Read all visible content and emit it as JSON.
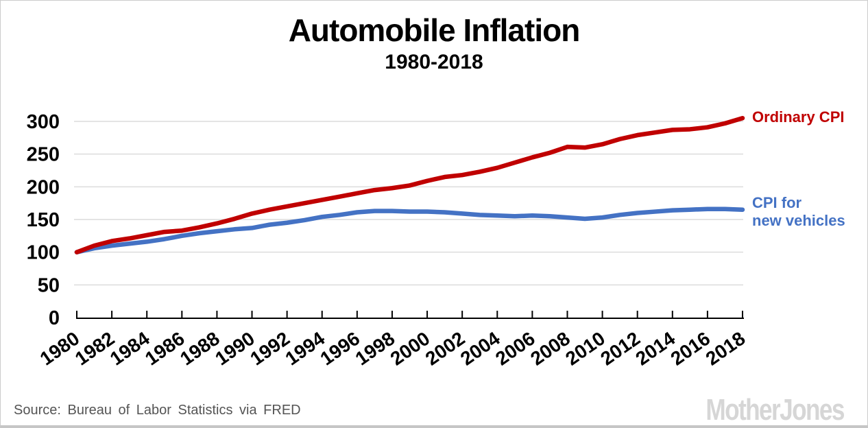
{
  "title": "Automobile Inflation",
  "subtitle": "1980-2018",
  "source": "Source: Bureau of Labor Statistics via FRED",
  "logo": "MotherJones",
  "legend": {
    "ordinary_cpi": "Ordinary CPI",
    "new_vehicles_line1": "CPI for",
    "new_vehicles_line2": "new vehicles"
  },
  "colors": {
    "ordinary_cpi": "#c00000",
    "new_vehicles": "#4472c4",
    "gridline": "#dcdcdc",
    "axis": "#000000"
  },
  "chart_data": {
    "type": "line",
    "title": "Automobile Inflation",
    "subtitle": "1980-2018",
    "xlabel": "",
    "ylabel": "",
    "x": [
      1980,
      1981,
      1982,
      1983,
      1984,
      1985,
      1986,
      1987,
      1988,
      1989,
      1990,
      1991,
      1992,
      1993,
      1994,
      1995,
      1996,
      1997,
      1998,
      1999,
      2000,
      2001,
      2002,
      2003,
      2004,
      2005,
      2006,
      2007,
      2008,
      2009,
      2010,
      2011,
      2012,
      2013,
      2014,
      2015,
      2016,
      2017,
      2018
    ],
    "series": [
      {
        "name": "Ordinary CPI",
        "color": "#c00000",
        "values": [
          100,
          110,
          117,
          121,
          126,
          131,
          133,
          138,
          144,
          151,
          159,
          165,
          170,
          175,
          180,
          185,
          190,
          195,
          198,
          202,
          209,
          215,
          218,
          223,
          229,
          237,
          245,
          252,
          261,
          260,
          265,
          273,
          279,
          283,
          287,
          288,
          291,
          297,
          305
        ]
      },
      {
        "name": "CPI for new vehicles",
        "color": "#4472c4",
        "values": [
          100,
          106,
          110,
          113,
          116,
          120,
          125,
          129,
          132,
          135,
          137,
          142,
          145,
          149,
          154,
          157,
          161,
          163,
          163,
          162,
          162,
          161,
          159,
          157,
          156,
          155,
          156,
          155,
          153,
          151,
          153,
          157,
          160,
          162,
          164,
          165,
          166,
          166,
          165
        ]
      }
    ],
    "ylim": [
      0,
      310
    ],
    "yticks": [
      0,
      50,
      100,
      150,
      200,
      250,
      300
    ],
    "xticks": [
      1980,
      1982,
      1984,
      1986,
      1988,
      1990,
      1992,
      1994,
      1996,
      1998,
      2000,
      2002,
      2004,
      2006,
      2008,
      2010,
      2012,
      2014,
      2016,
      2018
    ],
    "x_tick_rotation": -35,
    "grid": "horizontal",
    "legend_position": "right-of-line-ends"
  }
}
